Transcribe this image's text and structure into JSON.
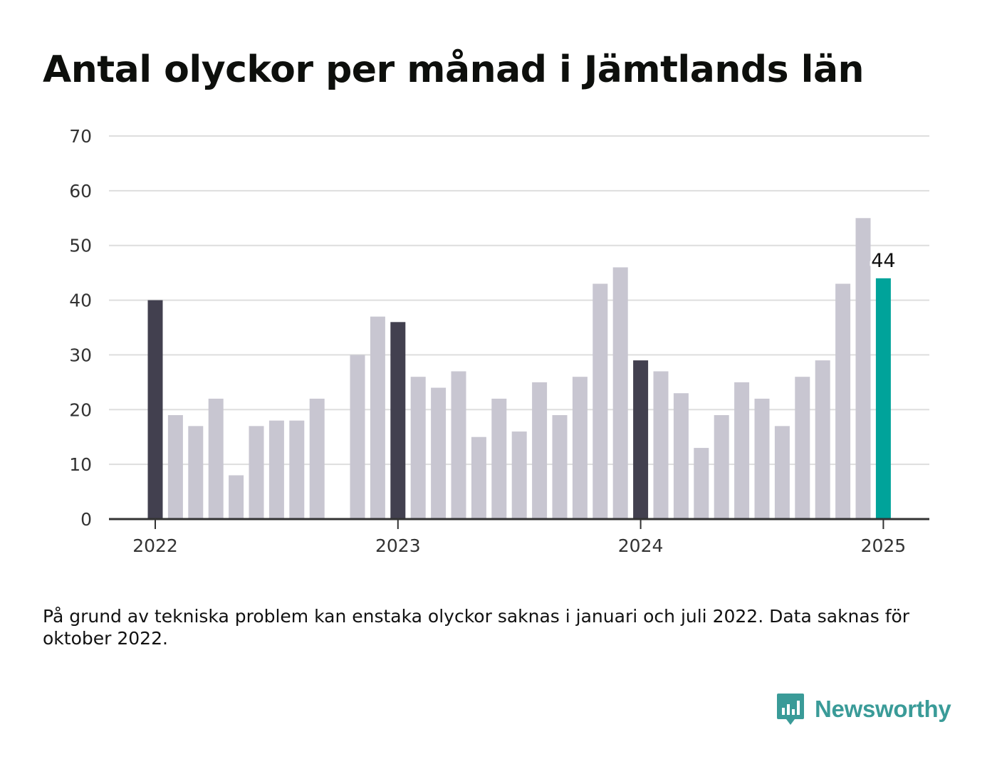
{
  "title": "Antal olyckor per månad i Jämtlands län",
  "footnote": "På grund av tekniska problem kan enstaka olyckor saknas i januari och juli 2022. Data saknas för oktober 2022.",
  "brand": {
    "name": "Newsworthy",
    "icon": "bar-chart-speech-bubble-icon",
    "color": "#3a9b98"
  },
  "chart_data": {
    "type": "bar",
    "title": "Antal olyckor per månad i Jämtlands län",
    "xlabel": "",
    "ylabel": "",
    "ylim": [
      0,
      70
    ],
    "yticks": [
      0,
      10,
      20,
      30,
      40,
      50,
      60,
      70
    ],
    "x_tick_labels": [
      {
        "label": "2022",
        "month": "2022-01"
      },
      {
        "label": "2023",
        "month": "2023-01"
      },
      {
        "label": "2024",
        "month": "2024-01"
      },
      {
        "label": "2025",
        "month": "2025-01"
      }
    ],
    "grid": true,
    "months": [
      "2022-01",
      "2022-02",
      "2022-03",
      "2022-04",
      "2022-05",
      "2022-06",
      "2022-07",
      "2022-08",
      "2022-09",
      "2022-10",
      "2022-11",
      "2022-12",
      "2023-01",
      "2023-02",
      "2023-03",
      "2023-04",
      "2023-05",
      "2023-06",
      "2023-07",
      "2023-08",
      "2023-09",
      "2023-10",
      "2023-11",
      "2023-12",
      "2024-01",
      "2024-02",
      "2024-03",
      "2024-04",
      "2024-05",
      "2024-06",
      "2024-07",
      "2024-08",
      "2024-09",
      "2024-10",
      "2024-11",
      "2024-12",
      "2025-01"
    ],
    "values": [
      40,
      19,
      17,
      22,
      8,
      17,
      18,
      18,
      22,
      null,
      30,
      37,
      36,
      26,
      24,
      27,
      15,
      22,
      16,
      25,
      19,
      26,
      43,
      46,
      29,
      27,
      23,
      13,
      19,
      25,
      22,
      17,
      26,
      29,
      43,
      55,
      44
    ],
    "highlight": {
      "month": "2025-01",
      "value": 44,
      "label": "44"
    },
    "colors": {
      "default": "#c8c6d1",
      "january": "#42404f",
      "highlight": "#00a39a",
      "grid": "#dedede",
      "axis": "#333333"
    }
  }
}
